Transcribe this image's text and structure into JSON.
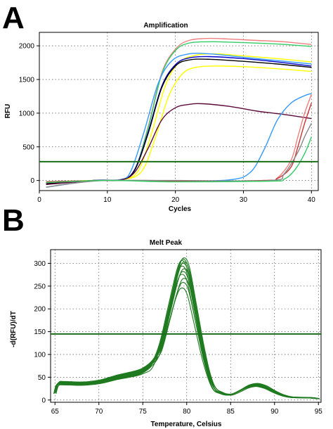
{
  "panels": [
    {
      "letter": "A"
    },
    {
      "letter": "B"
    }
  ],
  "chart_data": [
    {
      "type": "line",
      "title": "Amplification",
      "xlabel": "Cycles",
      "ylabel": "RFU",
      "xlim": [
        0,
        41
      ],
      "ylim": [
        -150,
        2200
      ],
      "xticks": [
        0,
        10,
        20,
        30,
        40
      ],
      "yticks": [
        0,
        500,
        1000,
        1500,
        2000
      ],
      "grid": true,
      "threshold": 280,
      "threshold_color": "#1a6e1a",
      "series": [
        {
          "color": "#f08080",
          "values": [
            [
              1,
              -40
            ],
            [
              8,
              0
            ],
            [
              12,
              10
            ],
            [
              14,
              150
            ],
            [
              16,
              800
            ],
            [
              18,
              1600
            ],
            [
              20,
              1950
            ],
            [
              22,
              2080
            ],
            [
              25,
              2110
            ],
            [
              28,
              2100
            ],
            [
              32,
              2080
            ],
            [
              36,
              2060
            ],
            [
              40,
              2020
            ]
          ]
        },
        {
          "color": "#33cc66",
          "values": [
            [
              1,
              -30
            ],
            [
              8,
              0
            ],
            [
              12,
              10
            ],
            [
              14,
              160
            ],
            [
              16,
              780
            ],
            [
              18,
              1580
            ],
            [
              20,
              1930
            ],
            [
              22,
              2040
            ],
            [
              25,
              2060
            ],
            [
              28,
              2055
            ],
            [
              32,
              2040
            ],
            [
              36,
              2020
            ],
            [
              40,
              1990
            ]
          ]
        },
        {
          "color": "#ffff00",
          "values": [
            [
              1,
              -20
            ],
            [
              8,
              0
            ],
            [
              12,
              10
            ],
            [
              14.5,
              140
            ],
            [
              16.5,
              700
            ],
            [
              18.5,
              1400
            ],
            [
              20.5,
              1750
            ],
            [
              23,
              1860
            ],
            [
              26,
              1880
            ],
            [
              30,
              1850
            ],
            [
              35,
              1810
            ],
            [
              40,
              1760
            ]
          ]
        },
        {
          "color": "#ffff00",
          "values": [
            [
              1,
              -20
            ],
            [
              8,
              0
            ],
            [
              12,
              10
            ],
            [
              15,
              130
            ],
            [
              17,
              620
            ],
            [
              19,
              1250
            ],
            [
              21,
              1580
            ],
            [
              23,
              1680
            ],
            [
              26,
              1700
            ],
            [
              30,
              1690
            ],
            [
              35,
              1660
            ],
            [
              40,
              1620
            ]
          ]
        },
        {
          "color": "#0000cc",
          "values": [
            [
              1,
              -50
            ],
            [
              8,
              0
            ],
            [
              12,
              10
            ],
            [
              14,
              160
            ],
            [
              16,
              720
            ],
            [
              18,
              1400
            ],
            [
              20,
              1720
            ],
            [
              22,
              1820
            ],
            [
              25,
              1840
            ],
            [
              30,
              1810
            ],
            [
              35,
              1760
            ],
            [
              40,
              1700
            ]
          ]
        },
        {
          "color": "#000000",
          "values": [
            [
              1,
              -50
            ],
            [
              8,
              0
            ],
            [
              12,
              10
            ],
            [
              14,
              150
            ],
            [
              16,
              700
            ],
            [
              18,
              1380
            ],
            [
              20,
              1700
            ],
            [
              22,
              1790
            ],
            [
              25,
              1800
            ],
            [
              30,
              1770
            ],
            [
              35,
              1730
            ],
            [
              40,
              1680
            ]
          ]
        },
        {
          "color": "#3399ff",
          "values": [
            [
              1,
              -100
            ],
            [
              8,
              0
            ],
            [
              12,
              15
            ],
            [
              13.5,
              150
            ],
            [
              15.5,
              760
            ],
            [
              17.5,
              1450
            ],
            [
              19.5,
              1780
            ],
            [
              22,
              1880
            ],
            [
              25,
              1880
            ],
            [
              30,
              1830
            ],
            [
              35,
              1780
            ],
            [
              40,
              1730
            ]
          ]
        },
        {
          "color": "#5c0a3a",
          "values": [
            [
              1,
              -60
            ],
            [
              8,
              0
            ],
            [
              12,
              10
            ],
            [
              14,
              120
            ],
            [
              16,
              480
            ],
            [
              18,
              900
            ],
            [
              20,
              1080
            ],
            [
              22,
              1130
            ],
            [
              24,
              1140
            ],
            [
              28,
              1100
            ],
            [
              32,
              1030
            ],
            [
              36,
              980
            ],
            [
              40,
              920
            ]
          ]
        },
        {
          "color": "#3399ff",
          "values": [
            [
              1,
              -20
            ],
            [
              10,
              0
            ],
            [
              20,
              -10
            ],
            [
              28,
              10
            ],
            [
              31,
              120
            ],
            [
              33,
              450
            ],
            [
              35,
              900
            ],
            [
              37,
              1150
            ],
            [
              39,
              1260
            ],
            [
              40,
              1290
            ]
          ]
        },
        {
          "color": "#f08080",
          "values": [
            [
              1,
              -30
            ],
            [
              10,
              0
            ],
            [
              20,
              -10
            ],
            [
              33,
              0
            ],
            [
              35,
              40
            ],
            [
              37,
              300
            ],
            [
              38,
              650
            ],
            [
              39,
              1000
            ],
            [
              40,
              1280
            ]
          ]
        },
        {
          "color": "#cc3333",
          "values": [
            [
              1,
              -20
            ],
            [
              10,
              0
            ],
            [
              20,
              -10
            ],
            [
              33,
              0
            ],
            [
              35,
              30
            ],
            [
              37,
              200
            ],
            [
              38,
              500
            ],
            [
              39,
              850
            ],
            [
              40,
              1150
            ]
          ]
        },
        {
          "color": "#888888",
          "values": [
            [
              1,
              -100
            ],
            [
              5,
              -40
            ],
            [
              10,
              0
            ],
            [
              20,
              0
            ],
            [
              34,
              0
            ],
            [
              36,
              100
            ],
            [
              38,
              420
            ],
            [
              39,
              650
            ],
            [
              40,
              850
            ]
          ]
        },
        {
          "color": "#33cc66",
          "values": [
            [
              1,
              -30
            ],
            [
              10,
              0
            ],
            [
              20,
              -20
            ],
            [
              34,
              -10
            ],
            [
              36,
              20
            ],
            [
              37.5,
              150
            ],
            [
              39,
              400
            ],
            [
              40,
              650
            ]
          ]
        }
      ]
    },
    {
      "type": "line",
      "title": "Melt Peak",
      "xlabel": "Temperature, Celsius",
      "ylabel": "-d(RFU)/dT",
      "xlim": [
        64.5,
        95.3
      ],
      "ylim": [
        -5,
        330
      ],
      "xticks": [
        65,
        70,
        75,
        80,
        85,
        90,
        95
      ],
      "yticks": [
        0,
        50,
        100,
        150,
        200,
        250,
        300
      ],
      "grid": true,
      "threshold": 145,
      "threshold_color": "#1a6e1a",
      "line_color": "#1f7a1f",
      "base_curve": [
        [
          65,
          15
        ],
        [
          65.3,
          35
        ],
        [
          66,
          37
        ],
        [
          68,
          36
        ],
        [
          70,
          40
        ],
        [
          72,
          50
        ],
        [
          74,
          58
        ],
        [
          75,
          65
        ],
        [
          76,
          80
        ],
        [
          77,
          120
        ],
        [
          78,
          200
        ],
        [
          79,
          280
        ],
        [
          79.6,
          300
        ],
        [
          80.2,
          280
        ],
        [
          81,
          200
        ],
        [
          82,
          100
        ],
        [
          83,
          30
        ],
        [
          84,
          15
        ],
        [
          85,
          12
        ],
        [
          86,
          20
        ],
        [
          87,
          30
        ],
        [
          88,
          33
        ],
        [
          89,
          28
        ],
        [
          90,
          18
        ],
        [
          91,
          10
        ],
        [
          92,
          6
        ],
        [
          94,
          5
        ],
        [
          95,
          3
        ]
      ],
      "curve_scales": [
        0.82,
        0.86,
        0.89,
        0.92,
        0.94,
        0.96,
        0.98,
        1.0,
        1.01,
        1.02,
        1.03,
        1.04
      ]
    }
  ]
}
